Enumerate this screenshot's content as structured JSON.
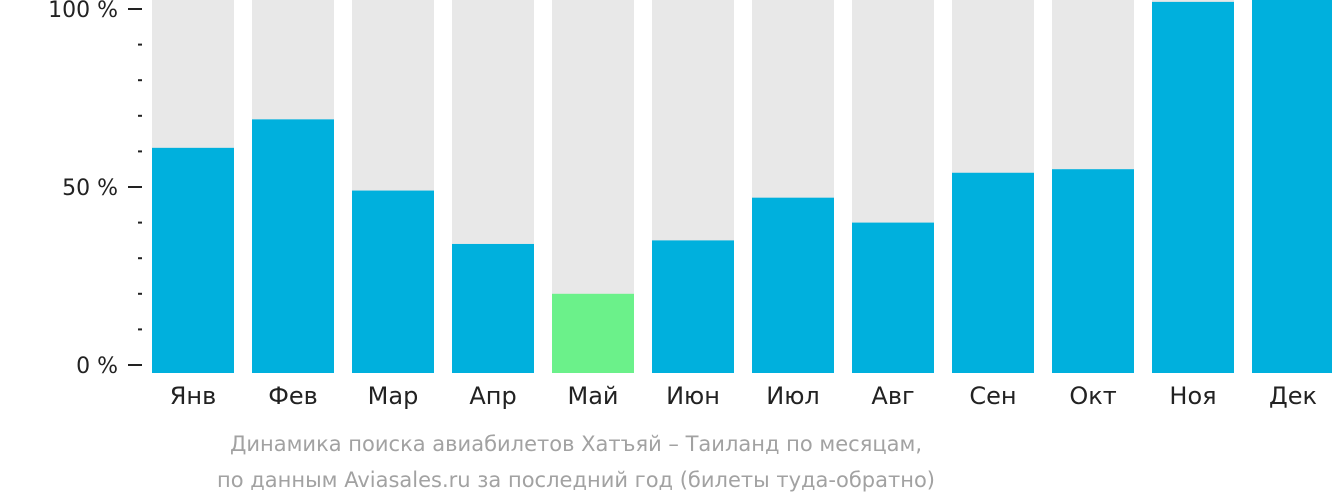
{
  "caption": {
    "line1": "Динамика поиска авиабилетов Хатъяй – Таиланд по месяцам,",
    "line2": "по данным Aviasales.ru за последний год (билеты туда-обратно)"
  },
  "chart_data": {
    "type": "bar",
    "title": "",
    "xlabel": "",
    "ylabel": "",
    "categories": [
      "Янв",
      "Фев",
      "Мар",
      "Апр",
      "Май",
      "Июн",
      "Июл",
      "Авг",
      "Сен",
      "Окт",
      "Ноя",
      "Дек"
    ],
    "values": [
      61,
      69,
      49,
      34,
      20,
      35,
      47,
      40,
      54,
      55,
      102,
      107
    ],
    "highlighted": [
      "Май"
    ],
    "ylim": [
      0,
      105
    ],
    "yticks": [
      {
        "value": 0,
        "label": "0 %"
      },
      {
        "value": 50,
        "label": "50 %"
      },
      {
        "value": 100,
        "label": "100 %"
      }
    ],
    "minor_tick_step": 10,
    "grid": false,
    "colors": {
      "bar": "#00b0dd",
      "bar_highlight": "#6bf18a",
      "bar_background": "#e8e8e8",
      "axis": "#222222"
    }
  }
}
